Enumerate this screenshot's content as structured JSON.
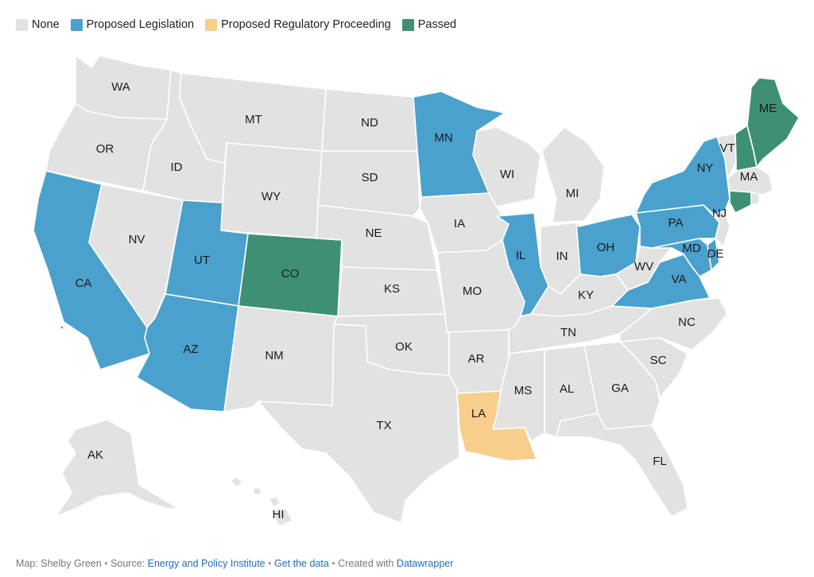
{
  "colors": {
    "none": "#e2e2e2",
    "legislation": "#4ba1cd",
    "regulatory": "#f7ce8b",
    "passed": "#3d9073",
    "label_text": "#1a1a1a",
    "link": "#1d6fb8"
  },
  "legend": [
    {
      "key": "none",
      "label": "None"
    },
    {
      "key": "legislation",
      "label": "Proposed Legislation"
    },
    {
      "key": "regulatory",
      "label": "Proposed Regulatory Proceeding"
    },
    {
      "key": "passed",
      "label": "Passed"
    }
  ],
  "states": [
    {
      "code": "WA",
      "status": "none"
    },
    {
      "code": "OR",
      "status": "none"
    },
    {
      "code": "CA",
      "status": "legislation"
    },
    {
      "code": "NV",
      "status": "none"
    },
    {
      "code": "ID",
      "status": "none"
    },
    {
      "code": "MT",
      "status": "none"
    },
    {
      "code": "WY",
      "status": "none"
    },
    {
      "code": "UT",
      "status": "legislation"
    },
    {
      "code": "AZ",
      "status": "legislation"
    },
    {
      "code": "CO",
      "status": "passed"
    },
    {
      "code": "NM",
      "status": "none"
    },
    {
      "code": "ND",
      "status": "none"
    },
    {
      "code": "SD",
      "status": "none"
    },
    {
      "code": "NE",
      "status": "none"
    },
    {
      "code": "KS",
      "status": "none"
    },
    {
      "code": "OK",
      "status": "none"
    },
    {
      "code": "TX",
      "status": "none"
    },
    {
      "code": "MN",
      "status": "legislation"
    },
    {
      "code": "IA",
      "status": "none"
    },
    {
      "code": "MO",
      "status": "none"
    },
    {
      "code": "AR",
      "status": "none"
    },
    {
      "code": "LA",
      "status": "regulatory"
    },
    {
      "code": "WI",
      "status": "none"
    },
    {
      "code": "IL",
      "status": "legislation"
    },
    {
      "code": "MI",
      "status": "none"
    },
    {
      "code": "IN",
      "status": "none"
    },
    {
      "code": "OH",
      "status": "legislation"
    },
    {
      "code": "KY",
      "status": "none"
    },
    {
      "code": "TN",
      "status": "none"
    },
    {
      "code": "MS",
      "status": "none"
    },
    {
      "code": "AL",
      "status": "none"
    },
    {
      "code": "GA",
      "status": "none"
    },
    {
      "code": "FL",
      "status": "none"
    },
    {
      "code": "SC",
      "status": "none"
    },
    {
      "code": "NC",
      "status": "none"
    },
    {
      "code": "VA",
      "status": "legislation"
    },
    {
      "code": "WV",
      "status": "none"
    },
    {
      "code": "MD",
      "status": "legislation"
    },
    {
      "code": "DE",
      "status": "legislation"
    },
    {
      "code": "PA",
      "status": "legislation"
    },
    {
      "code": "NJ",
      "status": "none"
    },
    {
      "code": "NY",
      "status": "legislation"
    },
    {
      "code": "CT",
      "status": "passed"
    },
    {
      "code": "RI",
      "status": "none"
    },
    {
      "code": "MA",
      "status": "none"
    },
    {
      "code": "VT",
      "status": "none"
    },
    {
      "code": "NH",
      "status": "passed"
    },
    {
      "code": "ME",
      "status": "passed"
    },
    {
      "code": "AK",
      "status": "none"
    },
    {
      "code": "HI",
      "status": "none"
    }
  ],
  "labels": [
    "WA",
    "OR",
    "CA",
    "NV",
    "ID",
    "MT",
    "WY",
    "UT",
    "AZ",
    "CO",
    "NM",
    "ND",
    "SD",
    "NE",
    "KS",
    "OK",
    "TX",
    "MN",
    "IA",
    "MO",
    "AR",
    "LA",
    "WI",
    "IL",
    "MI",
    "IN",
    "OH",
    "KY",
    "TN",
    "MS",
    "AL",
    "GA",
    "FL",
    "SC",
    "NC",
    "VA",
    "WV",
    "MD",
    "DE",
    "PA",
    "NJ",
    "NY",
    "VT",
    "MA",
    "ME",
    "AK",
    "HI"
  ],
  "footer": {
    "map_credit": "Map: Shelby Green",
    "source_prefix": "Source:",
    "source_link": "Energy and Policy Institute",
    "data_link": "Get the data",
    "created_prefix": "Created with",
    "created_link": "Datawrapper"
  }
}
